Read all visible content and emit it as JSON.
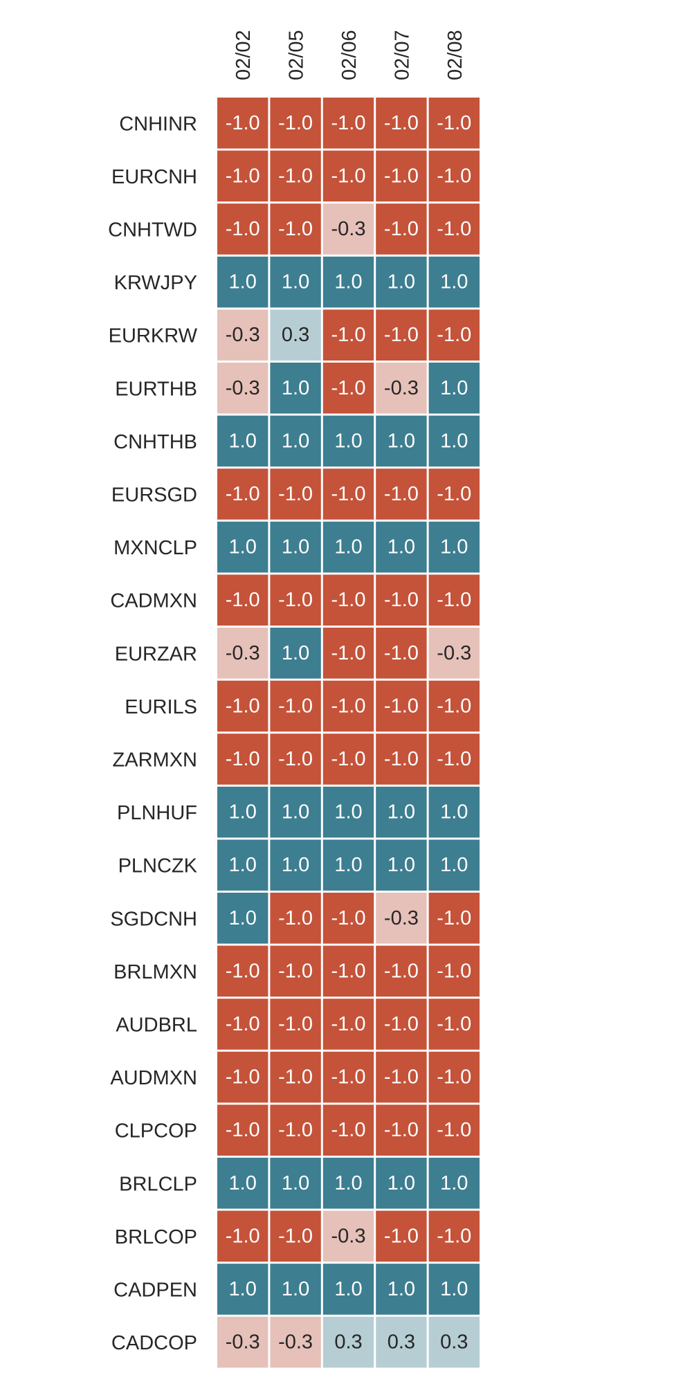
{
  "chart_data": {
    "type": "heatmap",
    "title": "",
    "xlabel": "",
    "ylabel": "",
    "value_format": "0.1f",
    "columns": [
      "02/02",
      "02/05",
      "02/06",
      "02/07",
      "02/08"
    ],
    "rows": [
      "CNHINR",
      "EURCNH",
      "CNHTWD",
      "KRWJPY",
      "EURKRW",
      "EURTHB",
      "CNHTHB",
      "EURSGD",
      "MXNCLP",
      "CADMXN",
      "EURZAR",
      "EURILS",
      "ZARMXN",
      "PLNHUF",
      "PLNCZK",
      "SGDCNH",
      "BRLMXN",
      "AUDBRL",
      "AUDMXN",
      "CLPCOP",
      "BRLCLP",
      "BRLCOP",
      "CADPEN",
      "CADCOP"
    ],
    "values": [
      [
        -1.0,
        -1.0,
        -1.0,
        -1.0,
        -1.0
      ],
      [
        -1.0,
        -1.0,
        -1.0,
        -1.0,
        -1.0
      ],
      [
        -1.0,
        -1.0,
        -0.3,
        -1.0,
        -1.0
      ],
      [
        1.0,
        1.0,
        1.0,
        1.0,
        1.0
      ],
      [
        -0.3,
        0.3,
        -1.0,
        -1.0,
        -1.0
      ],
      [
        -0.3,
        1.0,
        -1.0,
        -0.3,
        1.0
      ],
      [
        1.0,
        1.0,
        1.0,
        1.0,
        1.0
      ],
      [
        -1.0,
        -1.0,
        -1.0,
        -1.0,
        -1.0
      ],
      [
        1.0,
        1.0,
        1.0,
        1.0,
        1.0
      ],
      [
        -1.0,
        -1.0,
        -1.0,
        -1.0,
        -1.0
      ],
      [
        -0.3,
        1.0,
        -1.0,
        -1.0,
        -0.3
      ],
      [
        -1.0,
        -1.0,
        -1.0,
        -1.0,
        -1.0
      ],
      [
        -1.0,
        -1.0,
        -1.0,
        -1.0,
        -1.0
      ],
      [
        1.0,
        1.0,
        1.0,
        1.0,
        1.0
      ],
      [
        1.0,
        1.0,
        1.0,
        1.0,
        1.0
      ],
      [
        1.0,
        -1.0,
        -1.0,
        -0.3,
        -1.0
      ],
      [
        -1.0,
        -1.0,
        -1.0,
        -1.0,
        -1.0
      ],
      [
        -1.0,
        -1.0,
        -1.0,
        -1.0,
        -1.0
      ],
      [
        -1.0,
        -1.0,
        -1.0,
        -1.0,
        -1.0
      ],
      [
        -1.0,
        -1.0,
        -1.0,
        -1.0,
        -1.0
      ],
      [
        1.0,
        1.0,
        1.0,
        1.0,
        1.0
      ],
      [
        -1.0,
        -1.0,
        -0.3,
        -1.0,
        -1.0
      ],
      [
        1.0,
        1.0,
        1.0,
        1.0,
        1.0
      ],
      [
        -0.3,
        -0.3,
        0.3,
        0.3,
        0.3
      ]
    ],
    "vmin": -1.0,
    "vmax": 1.0,
    "colorbar": false,
    "grid": false,
    "colors": {
      "negative_strong": "#c4533a",
      "negative_weak": "#e6c1b9",
      "positive_weak": "#b6ced3",
      "positive_strong": "#3d7e91",
      "cell_border": "#ffffff",
      "text_dark": "#262626",
      "text_light": "#ffffff"
    }
  }
}
